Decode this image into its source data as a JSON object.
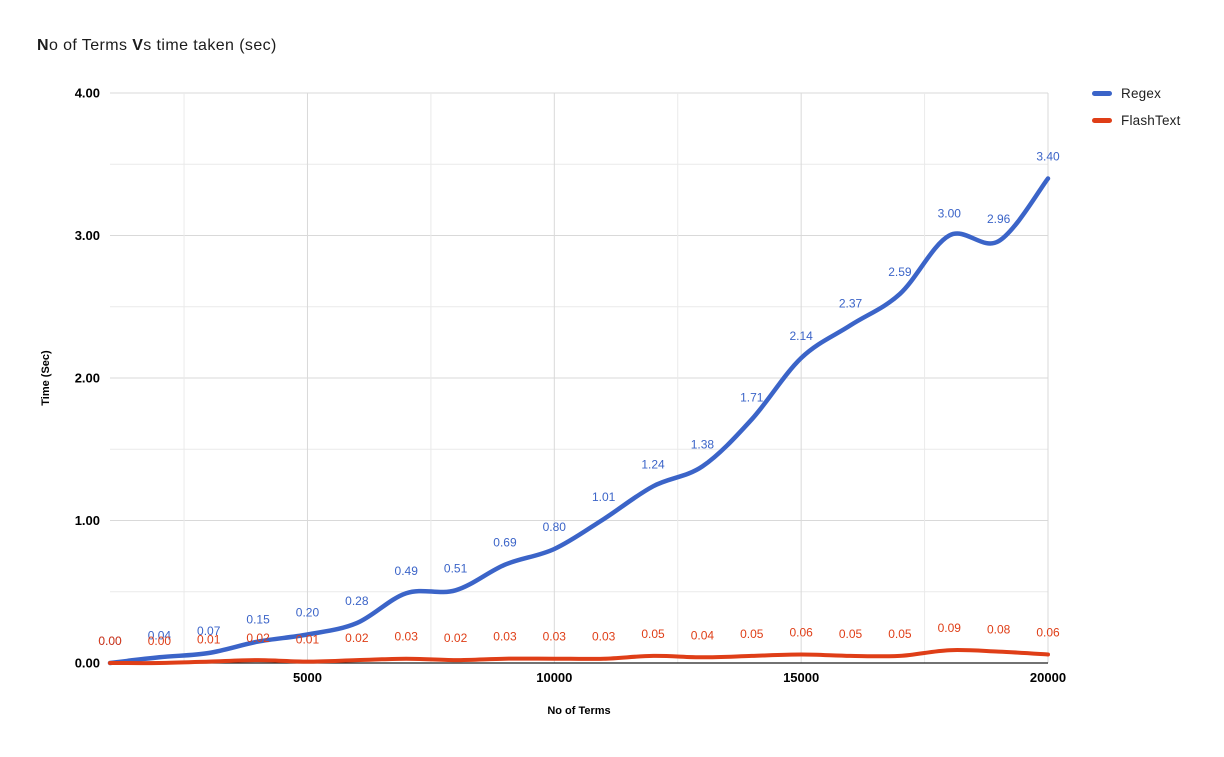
{
  "header": {
    "title_bold_1": "N",
    "title_rest_1": "o of Terms ",
    "title_bold_2": "V",
    "title_rest_2": "s time taken (sec)"
  },
  "colors": {
    "regex_blue": "#3B64C8",
    "flashtext_red": "#DF3E17",
    "grid_major": "#D9D9D9",
    "grid_minor": "#EAEAEA",
    "axis_line": "#1F1F1F",
    "tick_label": "#000000"
  },
  "chart_data": {
    "type": "line",
    "title": "No of Terms Vs time taken (sec)",
    "xlabel": "No of Terms",
    "ylabel": "Time (Sec)",
    "x": [
      1000,
      2000,
      3000,
      4000,
      5000,
      6000,
      7000,
      8000,
      9000,
      10000,
      11000,
      12000,
      13000,
      14000,
      15000,
      16000,
      17000,
      18000,
      19000,
      20000
    ],
    "series": [
      {
        "name": "Regex",
        "color": "#3B64C8",
        "values": [
          0.0,
          0.04,
          0.07,
          0.15,
          0.2,
          0.28,
          0.49,
          0.51,
          0.69,
          0.8,
          1.01,
          1.24,
          1.38,
          1.71,
          2.14,
          2.37,
          2.59,
          3.0,
          2.96,
          3.4
        ]
      },
      {
        "name": "FlashText",
        "color": "#DF3E17",
        "values": [
          0.0,
          0.0,
          0.01,
          0.02,
          0.01,
          0.02,
          0.03,
          0.02,
          0.03,
          0.03,
          0.03,
          0.05,
          0.04,
          0.05,
          0.06,
          0.05,
          0.05,
          0.09,
          0.08,
          0.06
        ]
      }
    ],
    "xlim": [
      1000,
      20000
    ],
    "ylim": [
      0,
      4
    ],
    "x_major_ticks": [
      5000,
      10000,
      15000,
      20000
    ],
    "x_minor_step": 2500,
    "y_major_ticks": [
      0,
      1,
      2,
      3,
      4
    ],
    "y_minor_step": 0.5,
    "grid": true,
    "smooth": true,
    "point_labels": true,
    "legend_position": "right"
  }
}
